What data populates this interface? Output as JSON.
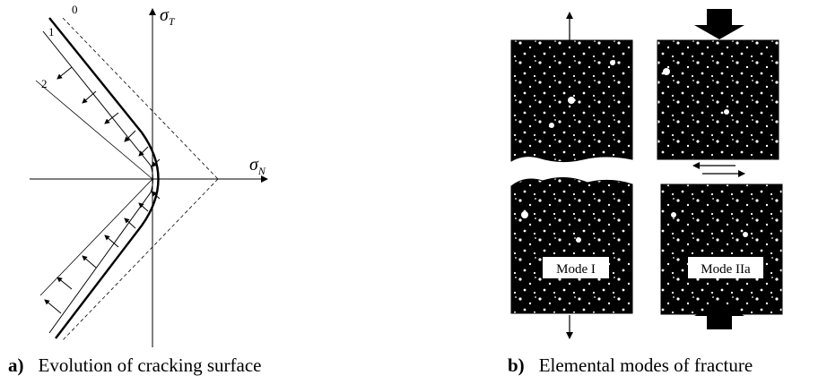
{
  "panel_a": {
    "caption_letter": "a)",
    "caption_text": "Evolution of cracking surface",
    "axis_x_label": "σ",
    "axis_x_sub": "N",
    "axis_y_label": "σ",
    "axis_y_sub": "T",
    "curve_labels": [
      "0",
      "1",
      "2"
    ]
  },
  "panel_b": {
    "caption_letter": "b)",
    "caption_text": "Elemental modes of fracture",
    "mode_labels": [
      "Mode I",
      "Mode IIa"
    ]
  },
  "colors": {
    "ink": "#000000",
    "background": "#ffffff"
  }
}
